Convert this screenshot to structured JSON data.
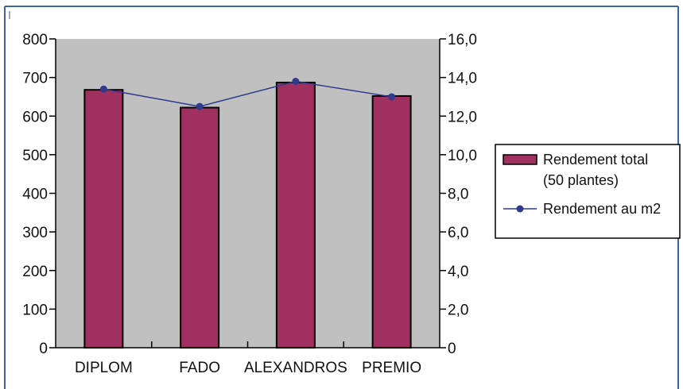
{
  "chart_data": {
    "type": "bar",
    "categories": [
      "DIPLOM",
      "FADO",
      "ALEXANDROS",
      "PREMIO"
    ],
    "series": [
      {
        "name": "Rendement total (50 plantes)",
        "kind": "bar",
        "axis": "left",
        "values": [
          668,
          622,
          687,
          652
        ],
        "color": "#A0305F"
      },
      {
        "name": "Rendement au m2",
        "kind": "line",
        "axis": "right",
        "values": [
          13.4,
          12.5,
          13.8,
          13.0
        ],
        "color": "#2E3A8C"
      }
    ],
    "left_axis": {
      "min": 0,
      "max": 800,
      "step": 100,
      "tick_labels": [
        "0",
        "100",
        "200",
        "300",
        "400",
        "500",
        "600",
        "700",
        "800"
      ]
    },
    "right_axis": {
      "min": 0,
      "max": 16,
      "step": 2,
      "tick_labels": [
        "0",
        "2,0",
        "4,0",
        "6,0",
        "8,0",
        "10,0",
        "12,0",
        "14,0",
        "16,0"
      ]
    },
    "plot_background": "#C0C0C0",
    "legend": {
      "placement": "right",
      "entries": [
        {
          "lines": [
            "Rendement total",
            "(50 plantes)"
          ],
          "kind": "bar"
        },
        {
          "lines": [
            "Rendement au m2"
          ],
          "kind": "line"
        }
      ]
    },
    "title": "",
    "xlabel": "",
    "ylabel": ""
  }
}
